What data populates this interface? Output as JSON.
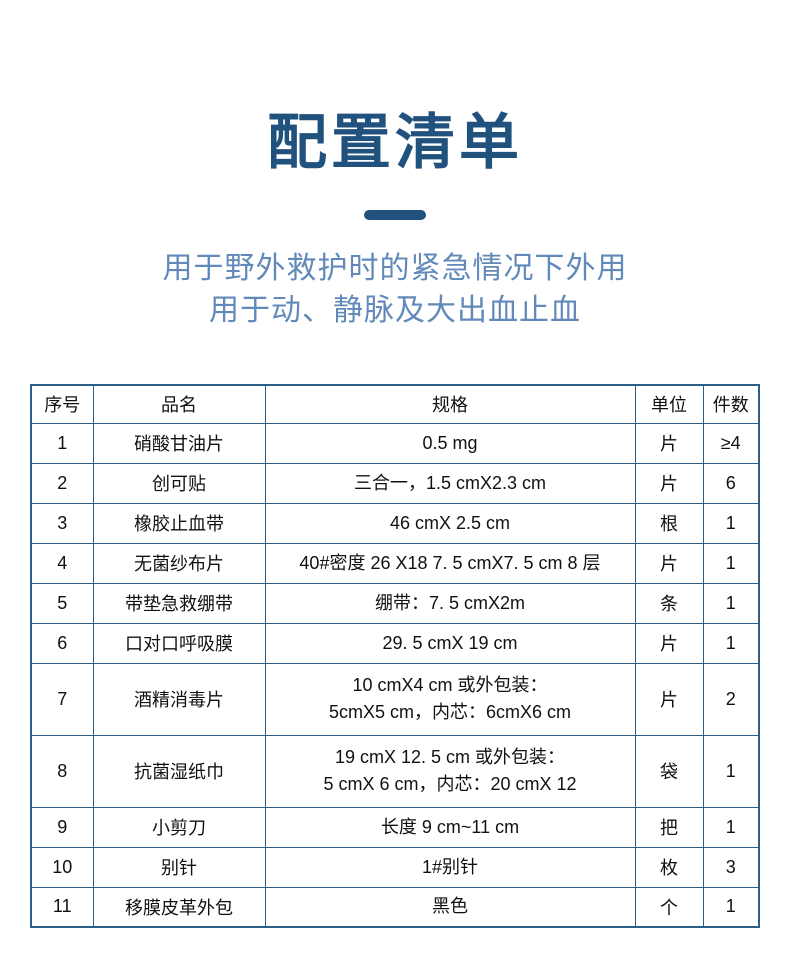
{
  "page": {
    "title": "配置清单",
    "subtitle_line1": "用于野外救护时的紧急情况下外用",
    "subtitle_line2": "用于动、静脉及大出血止血"
  },
  "colors": {
    "title_blue": "#21527e",
    "subtitle_blue": "#6189ba",
    "table_border_blue": "#2d5e87"
  },
  "table": {
    "headers": [
      "序号",
      "品名",
      "规格",
      "单位",
      "件数"
    ],
    "rows": [
      {
        "no": "1",
        "name": "硝酸甘油片",
        "spec": [
          "0.5 mg"
        ],
        "unit": "片",
        "qty": "≥4"
      },
      {
        "no": "2",
        "name": "创可贴",
        "spec": [
          "三合一，1.5 cmX2.3 cm"
        ],
        "unit": "片",
        "qty": "6"
      },
      {
        "no": "3",
        "name": "橡胶止血带",
        "spec": [
          "46 cmX 2.5 cm"
        ],
        "unit": "根",
        "qty": "1"
      },
      {
        "no": "4",
        "name": "无菌纱布片",
        "spec": [
          "40#密度 26 X18 7. 5 cmX7. 5 cm 8 层"
        ],
        "unit": "片",
        "qty": "1"
      },
      {
        "no": "5",
        "name": "带垫急救绷带",
        "spec": [
          "绷带：7. 5 cmX2m"
        ],
        "unit": "条",
        "qty": "1"
      },
      {
        "no": "6",
        "name": "口对口呼吸膜",
        "spec": [
          "29. 5 cmX 19 cm"
        ],
        "unit": "片",
        "qty": "1"
      },
      {
        "no": "7",
        "name": "酒精消毒片",
        "spec": [
          "10 cmX4 cm 或外包装：",
          "5cmX5 cm，内芯：6cmX6 cm"
        ],
        "unit": "片",
        "qty": "2"
      },
      {
        "no": "8",
        "name": "抗菌湿纸巾",
        "spec": [
          "19 cmX 12. 5 cm 或外包装：",
          "5 cmX 6 cm，内芯：20 cmX 12"
        ],
        "unit": "袋",
        "qty": "1"
      },
      {
        "no": "9",
        "name": "小剪刀",
        "spec": [
          "长度 9 cm~11 cm"
        ],
        "unit": "把",
        "qty": "1"
      },
      {
        "no": "10",
        "name": "别针",
        "spec": [
          "1#别针"
        ],
        "unit": "枚",
        "qty": "3"
      },
      {
        "no": "11",
        "name": "移膜皮革外包",
        "spec": [
          "黑色"
        ],
        "unit": "个",
        "qty": "1"
      }
    ]
  }
}
